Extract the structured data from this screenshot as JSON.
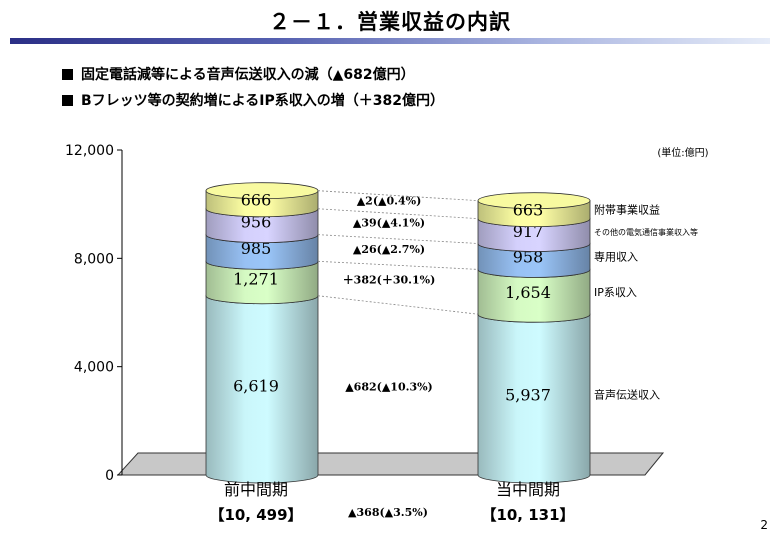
{
  "title": "２－１．営業収益の内訳",
  "bullets": [
    "固定電話減等による音声伝送収入の減（▲682億円）",
    "Bフレッツ等の契約増によるIP系収入の増（＋382億円）"
  ],
  "page_number": "2",
  "chart_data": {
    "type": "bar",
    "stacked": true,
    "unit_label": "(単位:億円)",
    "ylim": [
      0,
      12000
    ],
    "y_ticks": [
      "0",
      "4,000",
      "8,000",
      "12,000"
    ],
    "y_tick_values": [
      0,
      4000,
      8000,
      12000
    ],
    "categories": [
      "前中間期",
      "当中間期"
    ],
    "totals": [
      "【10, 499】",
      "【10, 131】"
    ],
    "total_change": "▲368(▲3.5%)",
    "series": [
      {
        "name": "音声伝送収入",
        "values": [
          6619,
          5937
        ],
        "labels": [
          "6,619",
          "5,937"
        ],
        "change": "▲682(▲10.3%)",
        "color": "#bfe8ec"
      },
      {
        "name": "IP系収入",
        "values": [
          1271,
          1654
        ],
        "labels": [
          "1,271",
          "1,654"
        ],
        "change": "＋382(＋30.1%)",
        "color": "#c9ecb8"
      },
      {
        "name": "専用収入",
        "values": [
          985,
          958
        ],
        "labels": [
          "985",
          "958"
        ],
        "change": "▲26(▲2.7%)",
        "color": "#8fb6e6"
      },
      {
        "name": "その他の電気通信事業収入等",
        "values": [
          956,
          917
        ],
        "labels": [
          "956",
          "917"
        ],
        "change": "▲39(▲4.1%)",
        "color": "#c8c4ee"
      },
      {
        "name": "附帯事業収益",
        "values": [
          666,
          663
        ],
        "labels": [
          "666",
          "663"
        ],
        "change": "▲2(▲0.4%)",
        "color": "#eef09a"
      }
    ]
  }
}
